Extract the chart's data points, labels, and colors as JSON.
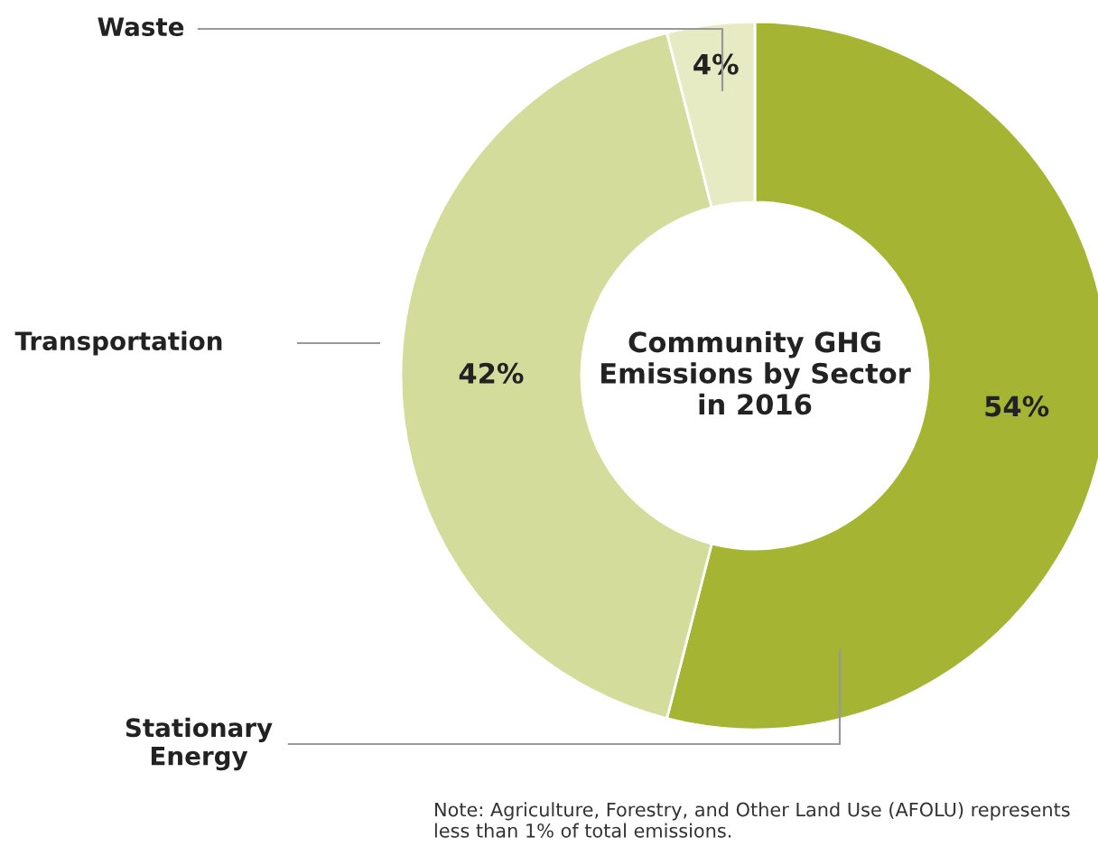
{
  "chart_data": {
    "type": "donut",
    "title": "Community GHG Emissions by Sector in 2016",
    "categories": [
      "Stationary Energy",
      "Transportation",
      "Waste"
    ],
    "values": [
      54,
      42,
      4
    ],
    "colors": [
      "#a5b433",
      "#d4dc9c",
      "#e7ebc3"
    ],
    "value_labels": [
      "54%",
      "42%",
      "4%"
    ],
    "annotations": [
      "Note: Agriculture, Forestry, and Other Land Use (AFOLU) represents less than 1% of total emissions."
    ]
  }
}
